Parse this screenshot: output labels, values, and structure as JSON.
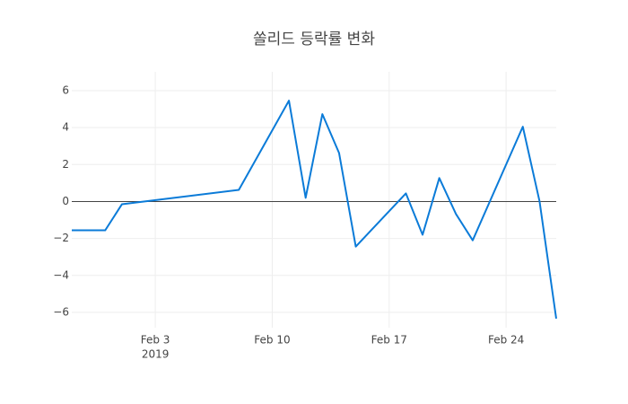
{
  "chart_data": {
    "type": "line",
    "title": "쏠리드 등락률 변화",
    "x": [
      "2019-01-29",
      "2019-01-31",
      "2019-02-01",
      "2019-02-08",
      "2019-02-11",
      "2019-02-12",
      "2019-02-13",
      "2019-02-14",
      "2019-02-15",
      "2019-02-18",
      "2019-02-19",
      "2019-02-20",
      "2019-02-21",
      "2019-02-22",
      "2019-02-25",
      "2019-02-26",
      "2019-02-27"
    ],
    "series": [
      {
        "color": "#0b7bd8",
        "values": [
          -1.56,
          -1.56,
          -0.15,
          0.63,
          5.46,
          0.2,
          4.73,
          2.63,
          -2.44,
          0.44,
          -1.8,
          1.27,
          -0.68,
          -2.1,
          4.05,
          0.02,
          -6.34
        ]
      }
    ],
    "xlim": [
      "2019-01-29",
      "2019-02-27"
    ],
    "xticks": [
      {
        "value": "2019-02-03",
        "label": "Feb 3"
      },
      {
        "value": "2019-02-10",
        "label": "Feb 10"
      },
      {
        "value": "2019-02-17",
        "label": "Feb 17"
      },
      {
        "value": "2019-02-24",
        "label": "Feb 24"
      }
    ],
    "x_year": "2019",
    "ylim": [
      -6.83,
      7.02
    ],
    "yticks": [
      {
        "value": -6,
        "label": "−6"
      },
      {
        "value": -4,
        "label": "−4"
      },
      {
        "value": -2,
        "label": "−2"
      },
      0,
      2,
      4,
      6
    ],
    "grid": true,
    "zero_line": true
  }
}
